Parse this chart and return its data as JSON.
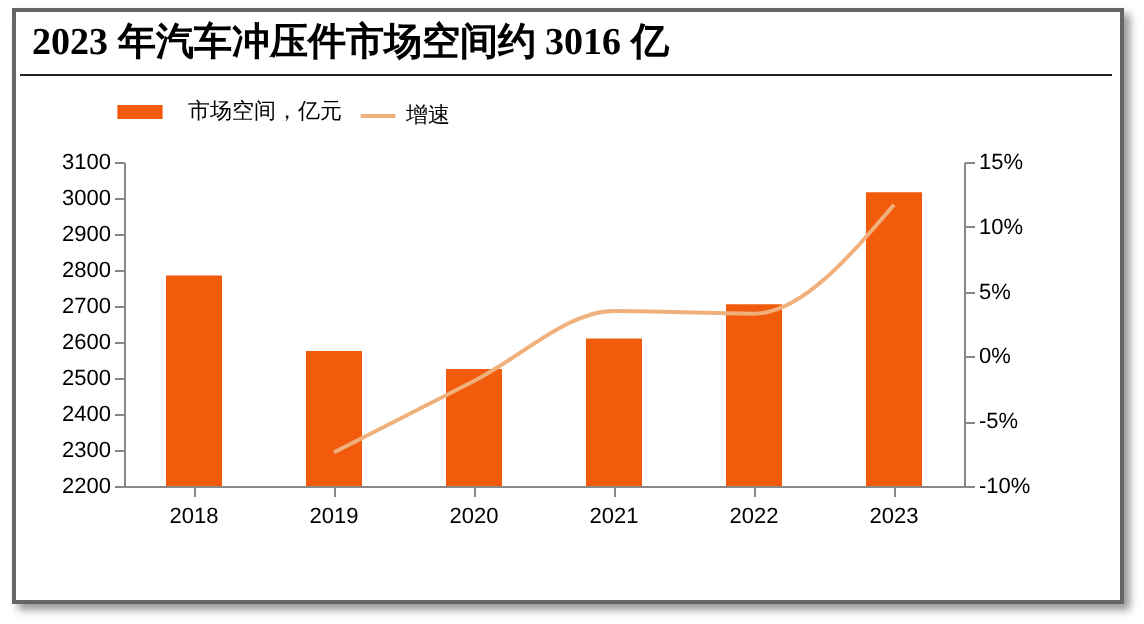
{
  "chart_data": {
    "type": "bar",
    "title": "2023 年汽车冲压件市场空间约 3016 亿",
    "categories": [
      "2018",
      "2019",
      "2020",
      "2021",
      "2022",
      "2023"
    ],
    "series": [
      {
        "name": "市场空间，亿元",
        "color": "#f25a0c",
        "values": [
          2785,
          2575,
          2525,
          2610,
          2705,
          3016
        ]
      },
      {
        "name": "增速",
        "type": "line",
        "axis": "y2",
        "color": "#f0b07c",
        "values": [
          null,
          -7.4,
          -1.9,
          3.5,
          3.3,
          11.7
        ]
      }
    ],
    "ylim": [
      2200,
      3100
    ],
    "yticks": [
      2200,
      2300,
      2400,
      2500,
      2600,
      2700,
      2800,
      2900,
      3000,
      3100
    ],
    "y2lim": [
      -10,
      15
    ],
    "y2ticks": [
      {
        "value": -10,
        "label": "-10%"
      },
      {
        "value": -5,
        "label": "-5%"
      },
      {
        "value": 0,
        "label": "0%"
      },
      {
        "value": 5,
        "label": "5%"
      },
      {
        "value": 10,
        "label": "10%"
      },
      {
        "value": 15,
        "label": "15%"
      }
    ],
    "grid": false,
    "legend": "top"
  }
}
